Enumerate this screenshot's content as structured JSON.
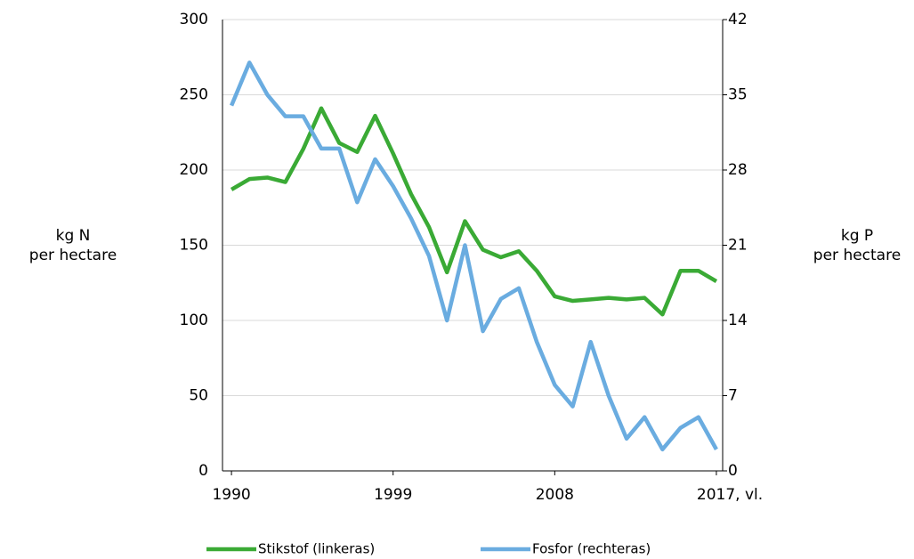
{
  "chart_data": {
    "type": "line",
    "y_label": [
      "kg N",
      "per hectare"
    ],
    "y2_label": [
      "kg P",
      "per hectare"
    ],
    "x": [
      1990,
      1991,
      1992,
      1993,
      1994,
      1995,
      1996,
      1997,
      1998,
      1999,
      2000,
      2001,
      2002,
      2003,
      2004,
      2005,
      2006,
      2007,
      2008,
      2009,
      2010,
      2011,
      2012,
      2013,
      2014,
      2015,
      2016,
      2017
    ],
    "xlim": [
      1989.5,
      2017.35
    ],
    "xticks": [
      1990,
      1999,
      2008,
      {
        "value": 2017,
        "label": "2017, vl."
      }
    ],
    "ylim": [
      0,
      300
    ],
    "yticks": [
      0,
      50,
      100,
      150,
      200,
      250,
      300
    ],
    "y2lim": [
      0,
      42
    ],
    "y2ticks": [
      0,
      7,
      14,
      21,
      28,
      35,
      42
    ],
    "grid": true,
    "legend": "bottom",
    "series": [
      {
        "name": "Stikstof (linkeras)",
        "color": "#3aaa35",
        "axis": "y",
        "values": [
          187,
          194,
          195,
          192,
          214,
          241,
          218,
          212,
          236,
          211,
          184,
          162,
          132,
          166,
          147,
          142,
          146,
          133,
          116,
          113,
          114,
          115,
          114,
          115,
          104,
          133,
          133,
          126
        ]
      },
      {
        "name": "Fosfor (rechteras)",
        "color": "#6aace0",
        "axis": "y2",
        "values": [
          34,
          38,
          35,
          33,
          33,
          30,
          30,
          25,
          29,
          26.5,
          23.5,
          20,
          14,
          21,
          13,
          16,
          17,
          12,
          8,
          6,
          12,
          7,
          3,
          5,
          2,
          4,
          5,
          2
        ]
      }
    ]
  }
}
